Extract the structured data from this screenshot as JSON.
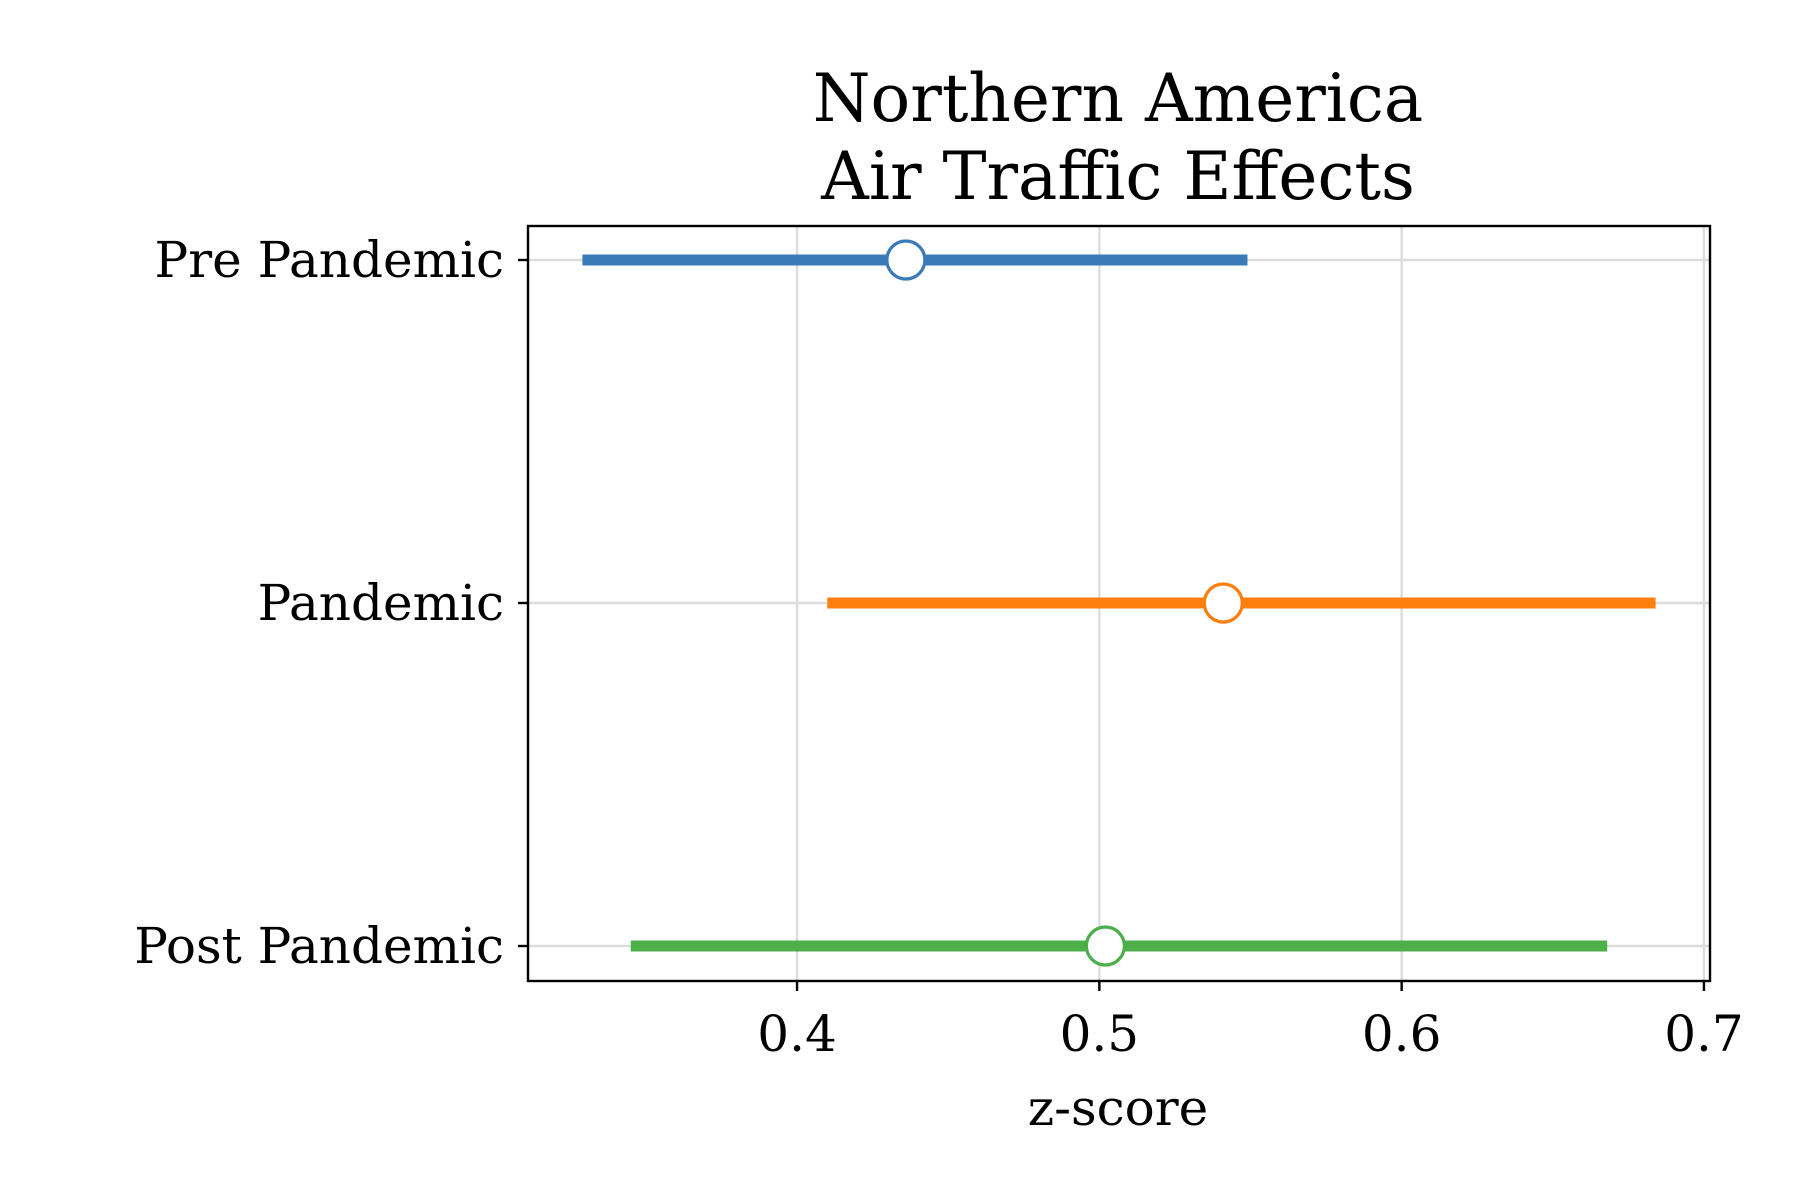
{
  "chart_data": {
    "type": "forest",
    "title": [
      "Northern America",
      "Air Traffic Effects"
    ],
    "xlabel": "z-score",
    "ylabel": "",
    "xlim": [
      0.311,
      0.702
    ],
    "xticks": [
      0.4,
      0.5,
      0.6,
      0.7
    ],
    "xtick_labels": [
      "0.4",
      "0.5",
      "0.6",
      "0.7"
    ],
    "grid": true,
    "categories": [
      "Pre Pandemic",
      "Pandemic",
      "Post Pandemic"
    ],
    "series": [
      {
        "category": "Pre Pandemic",
        "estimate": 0.436,
        "lower": 0.329,
        "upper": 0.549,
        "color": "#3a7ab8"
      },
      {
        "category": "Pandemic",
        "estimate": 0.541,
        "lower": 0.41,
        "upper": 0.684,
        "color": "#ff7f0e"
      },
      {
        "category": "Post Pandemic",
        "estimate": 0.502,
        "lower": 0.345,
        "upper": 0.668,
        "color": "#4daf4a"
      }
    ]
  }
}
